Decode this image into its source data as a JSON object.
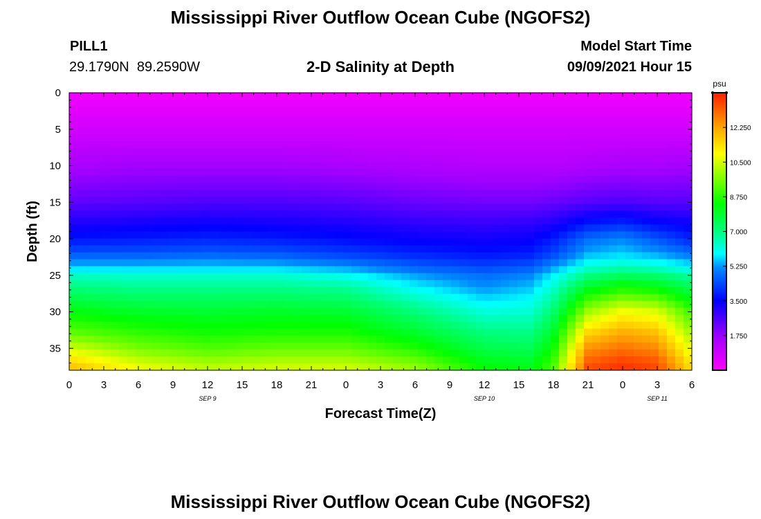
{
  "header": {
    "title": "Mississippi River Outflow Ocean Cube (NGOFS2)",
    "station": "PILL1",
    "lat": "29.1790N",
    "lon": "89.2590W",
    "subtitle": "2-D Salinity at Depth",
    "model_start_label": "Model Start Time",
    "model_start_time": "09/09/2021 Hour 15"
  },
  "footer": {
    "title": "Mississippi River Outflow Ocean Cube (NGOFS2)"
  },
  "chart_data": {
    "type": "heatmap",
    "title": "2-D Salinity at Depth",
    "xlabel": "Forecast Time(Z)",
    "ylabel": "Depth (ft)",
    "x_range": [
      0,
      54
    ],
    "y_range": [
      0,
      38
    ],
    "y_inverted": true,
    "x_tick_values": [
      0,
      3,
      6,
      9,
      12,
      15,
      18,
      21,
      24,
      27,
      30,
      33,
      36,
      39,
      42,
      45,
      48,
      51,
      54
    ],
    "x_tick_labels": [
      "0",
      "3",
      "6",
      "9",
      "12",
      "15",
      "18",
      "21",
      "0",
      "3",
      "6",
      "9",
      "12",
      "15",
      "18",
      "21",
      "0",
      "3",
      "6"
    ],
    "date_labels": [
      {
        "x": 12,
        "label": "SEP 9"
      },
      {
        "x": 36,
        "label": "SEP 10"
      },
      {
        "x": 51,
        "label": "SEP 11"
      }
    ],
    "y_ticks": [
      0,
      5,
      10,
      15,
      20,
      25,
      30,
      35
    ],
    "colorbar": {
      "unit": "psu",
      "range": [
        0,
        14
      ],
      "ticks": [
        1.75,
        3.5,
        5.25,
        7.0,
        8.75,
        10.5,
        12.25
      ],
      "tick_labels": [
        "1.750",
        "3.500",
        "5.250",
        "7.000",
        "8.750",
        "10.500",
        "12.250"
      ]
    },
    "depth_levels": [
      0,
      5,
      10,
      15,
      18,
      20,
      22,
      23,
      24,
      25,
      27,
      30,
      33,
      35,
      37,
      38
    ],
    "time_points": [
      0,
      6,
      12,
      18,
      24,
      30,
      36,
      40,
      42,
      45,
      48,
      51,
      54
    ],
    "salinity_psu": [
      [
        0.2,
        0.2,
        0.2,
        0.2,
        0.2,
        0.2,
        0.2,
        0.2,
        0.2,
        0.2,
        0.2,
        0.2,
        0.2
      ],
      [
        0.8,
        0.8,
        0.8,
        0.8,
        0.8,
        0.8,
        0.8,
        0.8,
        0.8,
        0.8,
        0.8,
        0.8,
        0.8
      ],
      [
        1.5,
        1.6,
        1.6,
        1.6,
        1.5,
        1.4,
        1.3,
        1.3,
        1.3,
        1.4,
        1.5,
        1.5,
        1.6
      ],
      [
        2.4,
        2.5,
        2.6,
        2.6,
        2.5,
        2.3,
        2.2,
        2.2,
        2.3,
        2.5,
        2.6,
        2.5,
        2.5
      ],
      [
        3.2,
        3.3,
        3.4,
        3.3,
        3.2,
        3.0,
        2.9,
        3.0,
        3.2,
        3.8,
        4.0,
        3.6,
        3.4
      ],
      [
        3.7,
        3.8,
        3.9,
        3.8,
        3.6,
        3.4,
        3.3,
        3.4,
        3.8,
        4.8,
        5.1,
        4.5,
        3.9
      ],
      [
        4.5,
        4.5,
        4.6,
        4.5,
        4.2,
        3.9,
        3.7,
        3.8,
        4.3,
        5.4,
        5.6,
        5.3,
        4.8
      ],
      [
        5.1,
        5.1,
        5.2,
        5.1,
        4.7,
        4.3,
        4.0,
        4.2,
        4.8,
        5.8,
        6.0,
        5.8,
        5.4
      ],
      [
        5.6,
        5.6,
        5.6,
        5.6,
        5.3,
        4.7,
        4.4,
        4.6,
        5.3,
        6.3,
        6.6,
        6.4,
        5.9
      ],
      [
        6.4,
        6.3,
        6.3,
        6.3,
        6.0,
        5.3,
        4.8,
        5.1,
        5.8,
        7.0,
        7.4,
        7.2,
        6.7
      ],
      [
        7.2,
        7.0,
        7.0,
        7.0,
        6.9,
        6.0,
        5.3,
        5.6,
        6.4,
        8.2,
        8.8,
        8.5,
        7.6
      ],
      [
        8.3,
        8.0,
        7.9,
        8.0,
        7.9,
        7.1,
        6.2,
        6.3,
        7.2,
        10.0,
        10.9,
        10.6,
        9.0
      ],
      [
        9.4,
        8.9,
        8.6,
        8.7,
        8.7,
        8.0,
        7.1,
        7.0,
        8.0,
        11.6,
        12.2,
        11.9,
        10.0
      ],
      [
        10.5,
        9.6,
        9.2,
        9.4,
        9.4,
        8.7,
        7.6,
        7.5,
        8.5,
        12.5,
        12.9,
        12.6,
        10.6
      ],
      [
        11.6,
        10.5,
        10.0,
        10.2,
        10.2,
        9.6,
        8.2,
        8.0,
        9.0,
        13.2,
        13.6,
        13.3,
        11.2
      ],
      [
        12.0,
        10.9,
        10.4,
        10.6,
        10.6,
        10.0,
        8.5,
        8.2,
        9.2,
        13.5,
        13.8,
        13.5,
        11.4
      ]
    ]
  }
}
